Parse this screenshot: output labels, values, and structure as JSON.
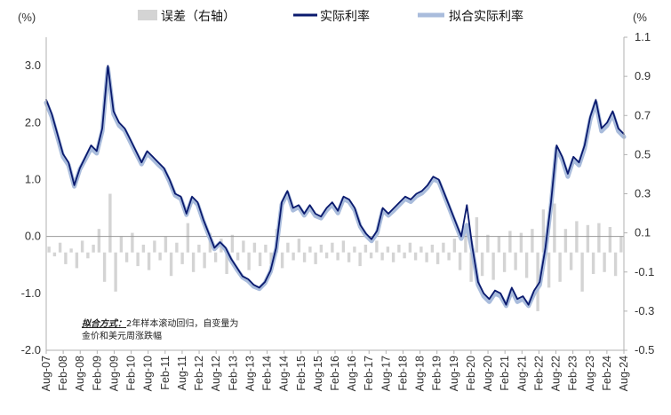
{
  "chart_data": {
    "type": "line",
    "title": "",
    "units": {
      "left": "(%)",
      "right": "(%"
    },
    "legend": {
      "placement": "top",
      "items": [
        {
          "name": "误差（右轴）",
          "color": "#d4d4d4",
          "swatch": "rect"
        },
        {
          "name": "实际利率",
          "color": "#0a1a6e",
          "swatch": "line"
        },
        {
          "name": "拟合实际利率",
          "color": "#a9bcdc",
          "swatch": "line"
        }
      ]
    },
    "left_axis": {
      "min": -2.0,
      "max": 3.5,
      "ticks": [
        "3.0",
        "2.0",
        "1.0",
        "0.0",
        "-1.0",
        "-2.0"
      ],
      "tick_values": [
        3.0,
        2.0,
        1.0,
        0.0,
        -1.0,
        -2.0
      ]
    },
    "right_axis": {
      "min": -0.5,
      "max": 1.1,
      "ticks": [
        "1.1",
        "0.9",
        "0.7",
        "0.5",
        "0.3",
        "0.1",
        "-0.1",
        "-0.3",
        "-0.5"
      ],
      "tick_values": [
        1.1,
        0.9,
        0.7,
        0.5,
        0.3,
        0.1,
        -0.1,
        -0.3,
        -0.5
      ]
    },
    "x_axis": {
      "ticks": [
        "Aug-07",
        "Feb-08",
        "Aug-08",
        "Feb-09",
        "Aug-09",
        "Feb-10",
        "Aug-10",
        "Feb-11",
        "Aug-11",
        "Feb-12",
        "Aug-12",
        "Feb-13",
        "Aug-13",
        "Feb-14",
        "Aug-14",
        "Feb-15",
        "Aug-15",
        "Feb-16",
        "Aug-16",
        "Feb-17",
        "Aug-17",
        "Feb-18",
        "Aug-18",
        "Feb-19",
        "Aug-19",
        "Feb-20",
        "Aug-20",
        "Feb-21",
        "Aug-21",
        "Feb-22",
        "Aug-22",
        "Feb-23",
        "Aug-23",
        "Feb-24",
        "Aug-24"
      ]
    },
    "series": [
      {
        "name": "实际利率",
        "axis": "left",
        "color": "#0a1a6e",
        "values": [
          2.4,
          2.15,
          1.8,
          1.45,
          1.3,
          0.9,
          1.2,
          1.4,
          1.6,
          1.5,
          1.9,
          3.0,
          2.2,
          2.0,
          1.9,
          1.7,
          1.5,
          1.3,
          1.5,
          1.4,
          1.3,
          1.2,
          1.0,
          0.75,
          0.7,
          0.4,
          0.7,
          0.6,
          0.3,
          0.05,
          -0.2,
          -0.1,
          -0.2,
          -0.4,
          -0.55,
          -0.7,
          -0.75,
          -0.85,
          -0.9,
          -0.8,
          -0.6,
          -0.2,
          0.6,
          0.8,
          0.5,
          0.55,
          0.4,
          0.55,
          0.4,
          0.35,
          0.5,
          0.6,
          0.45,
          0.7,
          0.65,
          0.5,
          0.2,
          0.05,
          -0.05,
          0.1,
          0.5,
          0.4,
          0.5,
          0.6,
          0.7,
          0.65,
          0.75,
          0.8,
          0.9,
          1.05,
          1.0,
          0.75,
          0.5,
          0.25,
          0.0,
          0.55,
          -0.2,
          -0.8,
          -1.0,
          -1.1,
          -0.95,
          -1.0,
          -1.2,
          -0.9,
          -1.1,
          -1.05,
          -1.2,
          -0.95,
          -0.8,
          -0.2,
          0.6,
          1.6,
          1.4,
          1.1,
          1.4,
          1.3,
          1.6,
          2.1,
          2.4,
          1.9,
          2.0,
          2.2,
          1.9,
          1.8
        ]
      },
      {
        "name": "拟合实际利率",
        "axis": "left",
        "color": "#a9bcdc",
        "values": [
          2.35,
          2.1,
          1.75,
          1.4,
          1.25,
          0.88,
          1.18,
          1.36,
          1.55,
          1.46,
          1.85,
          2.95,
          2.15,
          1.95,
          1.86,
          1.66,
          1.46,
          1.27,
          1.46,
          1.36,
          1.26,
          1.17,
          0.96,
          0.72,
          0.66,
          0.38,
          0.66,
          0.56,
          0.27,
          0.02,
          -0.22,
          -0.12,
          -0.23,
          -0.43,
          -0.58,
          -0.72,
          -0.78,
          -0.88,
          -0.92,
          -0.82,
          -0.62,
          -0.23,
          0.56,
          0.76,
          0.46,
          0.52,
          0.37,
          0.51,
          0.36,
          0.32,
          0.46,
          0.56,
          0.41,
          0.66,
          0.61,
          0.46,
          0.17,
          0.02,
          -0.08,
          0.06,
          0.46,
          0.37,
          0.46,
          0.56,
          0.66,
          0.61,
          0.71,
          0.76,
          0.86,
          1.01,
          0.96,
          0.71,
          0.46,
          0.21,
          -0.04,
          0.2,
          -0.25,
          -0.85,
          -1.05,
          -1.15,
          -1.0,
          -1.05,
          -1.22,
          -0.95,
          -1.15,
          -1.1,
          -1.22,
          -1.0,
          -0.85,
          -0.25,
          0.55,
          1.55,
          1.35,
          1.05,
          1.35,
          1.25,
          1.55,
          2.05,
          2.35,
          1.85,
          1.95,
          2.15,
          1.85,
          1.75
        ]
      },
      {
        "name": "误差（右轴）",
        "axis": "right",
        "color": "#d4d4d4",
        "values": [
          0.03,
          -0.02,
          0.05,
          -0.06,
          0.02,
          -0.08,
          0.06,
          -0.03,
          0.04,
          0.12,
          -0.15,
          0.3,
          -0.2,
          0.08,
          -0.05,
          0.1,
          -0.07,
          0.04,
          -0.09,
          0.06,
          -0.04,
          0.08,
          -0.12,
          0.05,
          -0.06,
          0.15,
          -0.1,
          0.04,
          -0.08,
          0.1,
          -0.05,
          0.07,
          -0.11,
          0.09,
          -0.04,
          0.06,
          -0.09,
          0.05,
          -0.07,
          0.04,
          -0.06,
          0.12,
          -0.08,
          0.05,
          -0.04,
          0.07,
          -0.05,
          0.03,
          -0.06,
          0.04,
          -0.03,
          0.05,
          -0.04,
          0.06,
          -0.05,
          0.03,
          -0.07,
          0.04,
          -0.03,
          0.06,
          -0.04,
          0.03,
          -0.05,
          0.04,
          -0.03,
          0.05,
          -0.04,
          0.03,
          -0.05,
          0.04,
          -0.06,
          0.05,
          -0.04,
          0.07,
          -0.09,
          0.12,
          -0.15,
          0.18,
          -0.12,
          0.09,
          -0.14,
          0.08,
          -0.1,
          0.11,
          -0.09,
          0.1,
          -0.13,
          0.12,
          -0.3,
          0.22,
          -0.18,
          0.25,
          -0.15,
          0.12,
          -0.09,
          0.16,
          -0.2,
          0.14,
          -0.11,
          0.15,
          -0.1,
          0.13,
          -0.12,
          0.08
        ]
      }
    ],
    "note": {
      "title": "拟合方式：",
      "line1": "2年样本滚动回归，自变量为",
      "line2": "金价和美元周涨跌幅"
    }
  }
}
